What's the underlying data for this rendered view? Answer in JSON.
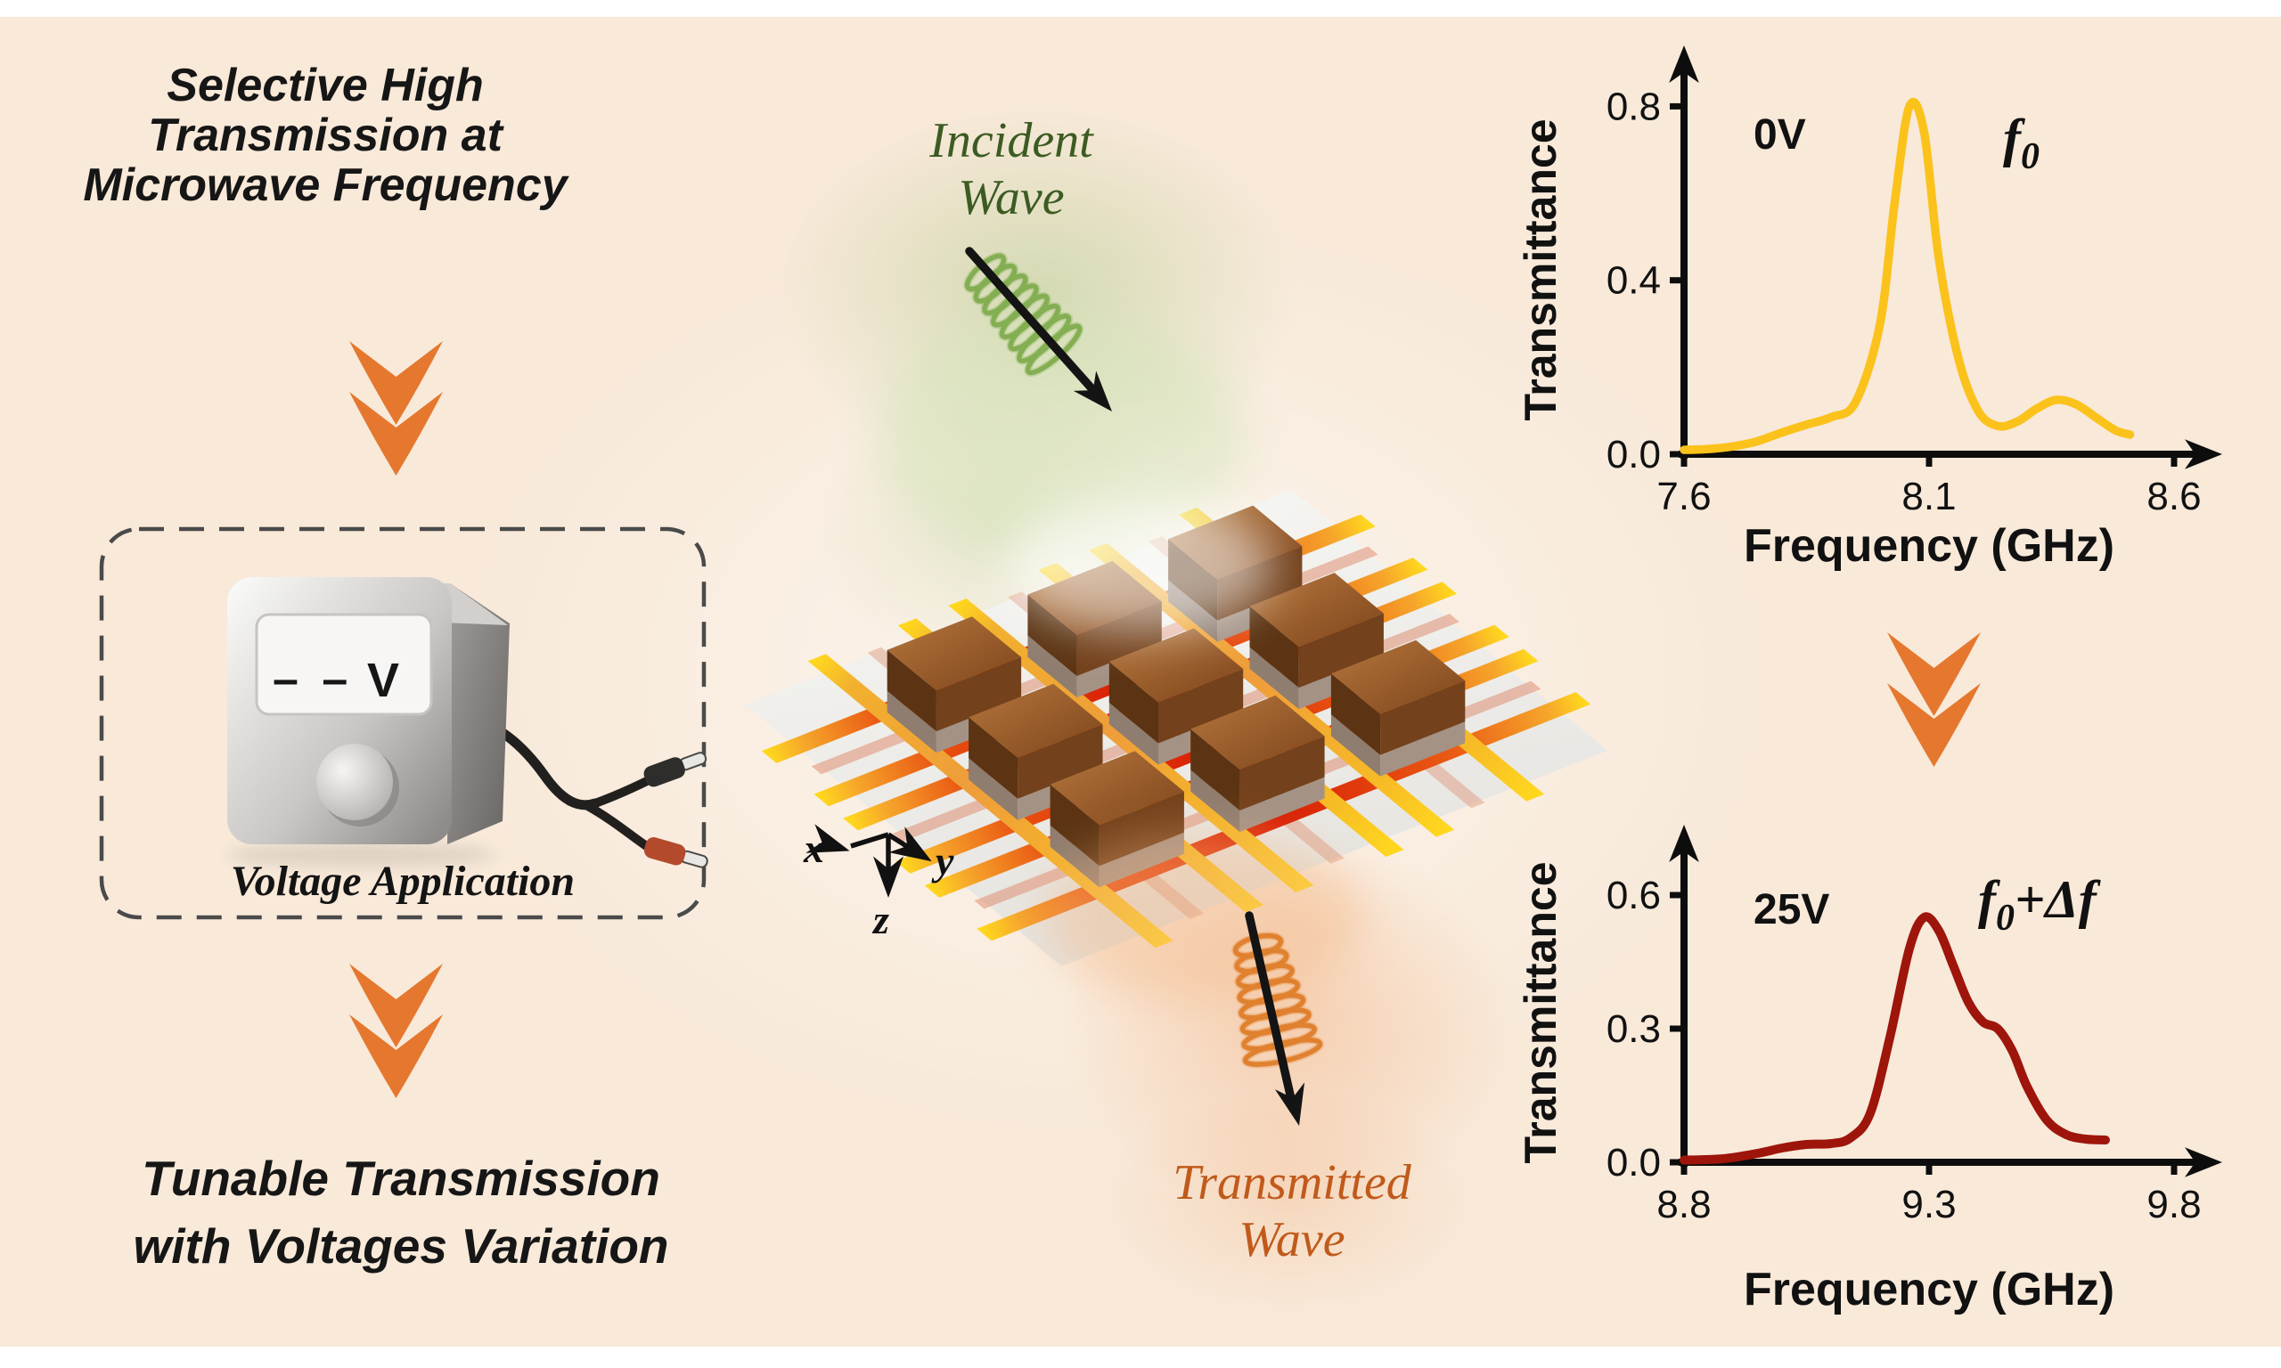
{
  "left_panel": {
    "headline": {
      "line1": "Selective High",
      "line2": "Transmission at",
      "line3": "Microwave Frequency"
    },
    "voltage_box": {
      "display_dashes": "– –",
      "display_unit": "V",
      "caption": "Voltage Application"
    },
    "footline": {
      "line1": "Tunable Transmission",
      "line2": "with Voltages Variation"
    }
  },
  "center_panel": {
    "incident_wave": {
      "line1": "Incident",
      "line2": "Wave"
    },
    "transmitted_wave": {
      "line1": "Transmitted",
      "line2": "Wave"
    },
    "axis_triad": {
      "x_label": "x",
      "y_label": "y",
      "z_label": "z"
    }
  },
  "chart_data": [
    {
      "type": "line",
      "condition_label": "0V",
      "peak_label": {
        "base": "f",
        "sub": "0",
        "suffix": ""
      },
      "xlabel": "Frequency (GHz)",
      "ylabel": "Transmittance",
      "xlim": [
        7.6,
        8.6
      ],
      "xticks": [
        7.6,
        8.1,
        8.6
      ],
      "ylim": [
        0,
        0.85
      ],
      "yticks": [
        0.0,
        0.4,
        0.8
      ],
      "grid": false,
      "legend": "none",
      "line_color": "#FBC21B",
      "series_name": "Transmittance at 0 V",
      "x": [
        7.6,
        7.65,
        7.7,
        7.75,
        7.8,
        7.85,
        7.9,
        7.95,
        8.0,
        8.03,
        8.06,
        8.09,
        8.12,
        8.16,
        8.2,
        8.24,
        8.28,
        8.32,
        8.36,
        8.4,
        8.44,
        8.48,
        8.51
      ],
      "y": [
        0.01,
        0.012,
        0.018,
        0.03,
        0.05,
        0.068,
        0.085,
        0.12,
        0.3,
        0.58,
        0.8,
        0.74,
        0.45,
        0.22,
        0.1,
        0.065,
        0.075,
        0.105,
        0.125,
        0.115,
        0.085,
        0.055,
        0.045
      ]
    },
    {
      "type": "line",
      "condition_label": "25V",
      "peak_label": {
        "base": "f",
        "sub": "0",
        "suffix": "+Δf"
      },
      "xlabel": "Frequency (GHz)",
      "ylabel": "Transmittance",
      "xlim": [
        8.8,
        9.8
      ],
      "xticks": [
        8.8,
        9.3,
        9.8
      ],
      "ylim": [
        0,
        0.67
      ],
      "yticks": [
        0.0,
        0.3,
        0.6
      ],
      "grid": false,
      "legend": "none",
      "line_color": "#9E150B",
      "series_name": "Transmittance at 25 V",
      "x": [
        8.8,
        8.88,
        8.95,
        9.0,
        9.05,
        9.1,
        9.14,
        9.18,
        9.22,
        9.26,
        9.29,
        9.32,
        9.35,
        9.38,
        9.41,
        9.44,
        9.47,
        9.5,
        9.54,
        9.58,
        9.62,
        9.66
      ],
      "y": [
        0.005,
        0.008,
        0.02,
        0.032,
        0.04,
        0.042,
        0.055,
        0.11,
        0.28,
        0.48,
        0.55,
        0.52,
        0.44,
        0.36,
        0.315,
        0.3,
        0.25,
        0.17,
        0.095,
        0.062,
        0.052,
        0.05
      ]
    }
  ],
  "colors": {
    "chevron": "#E5772E",
    "incident_text": "#3C5B23",
    "incident_coil": "#84AE52",
    "transmitted_text": "#C05A1B",
    "transmitted_coil": "#E0812F",
    "strip_red": "#D92106",
    "strip_orange": "#EE9D3A",
    "strip_tab_yellow": "#FFD81E",
    "strip_salmon": "#DD8668",
    "cube_top_light": "#B5763D",
    "cube_top_dark": "#7E451B",
    "cube_side_left": "#5C3413",
    "cube_side_right": "#73411B",
    "cube_base_left": "#8F7D6F",
    "cube_base_right": "#A49285",
    "dashed_border": "#4A4A4A",
    "axis_ink": "#0D0D0D"
  }
}
